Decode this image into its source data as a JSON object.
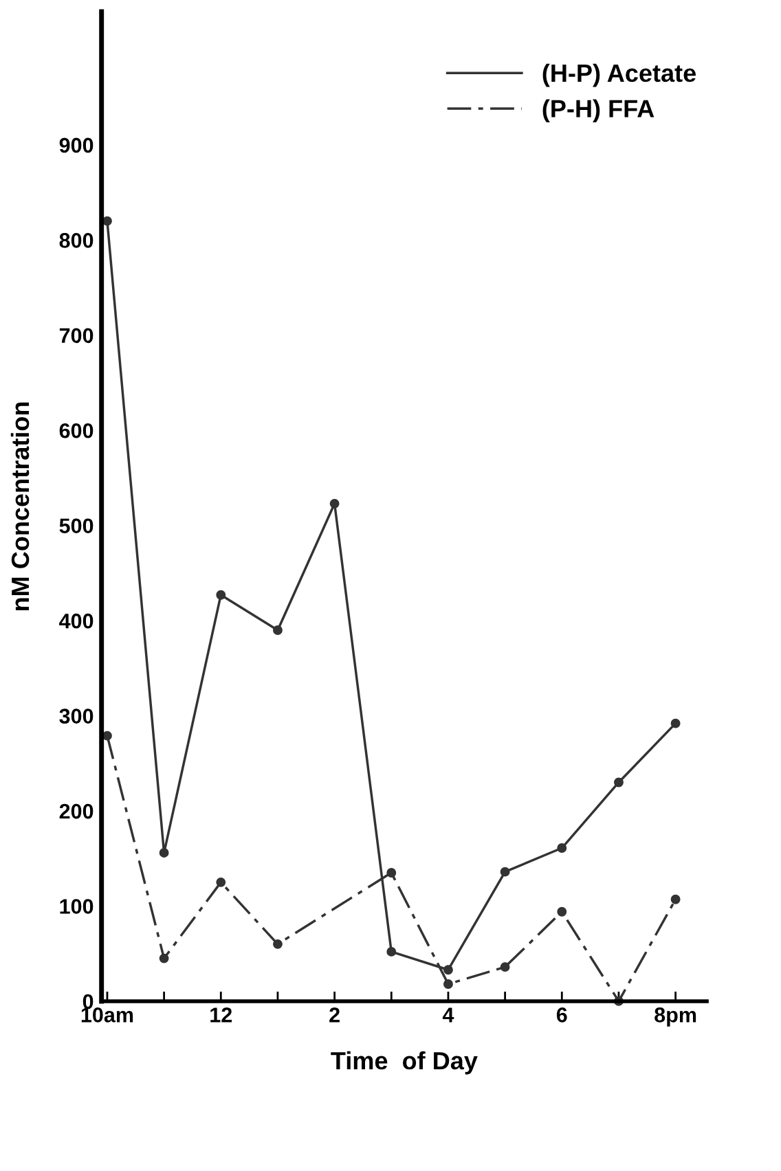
{
  "chart_data": {
    "type": "line",
    "xlabel": "Time  of Day",
    "ylabel": "nM Concentration",
    "categories": [
      "10am",
      null,
      "12",
      null,
      "2",
      null,
      "4",
      null,
      "6",
      null,
      "8pm"
    ],
    "series": [
      {
        "name": "(H-P) Acetate",
        "color": "#333333",
        "line_style": "solid",
        "values": [
          820,
          156,
          427,
          390,
          523,
          52,
          33,
          136,
          161,
          230,
          292
        ]
      },
      {
        "name": "(P-H) FFA",
        "color": "#333333",
        "line_style": "dashdot",
        "values": [
          279,
          45,
          125,
          60,
          null,
          135,
          18,
          36,
          94,
          0,
          107
        ]
      }
    ],
    "ylim": [
      0,
      1040
    ],
    "yticks": [
      0,
      100,
      200,
      300,
      400,
      500,
      600,
      700,
      800,
      900
    ],
    "marker": "circle",
    "grid": false,
    "legend": "top right"
  }
}
